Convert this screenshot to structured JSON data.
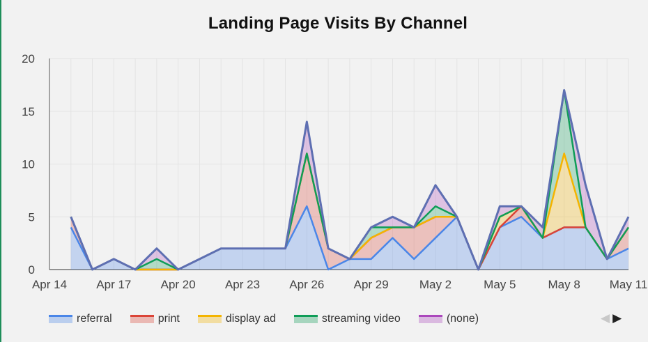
{
  "colors": {
    "referral": "#4a86e8",
    "print": "#db4437",
    "display ad": "#f4b400",
    "streaming video": "#0f9d58",
    "(none)": "#ab47bc",
    "outline": "#5e6fb2"
  },
  "chart_data": {
    "type": "area",
    "stacked": true,
    "title": "Landing Page Visits By Channel",
    "xlabel": "",
    "ylabel": "",
    "ylim": [
      0,
      20
    ],
    "yticks": [
      "0",
      "5",
      "10",
      "15",
      "20"
    ],
    "xtick_labels": [
      "Apr 14",
      "Apr 17",
      "Apr 20",
      "Apr 23",
      "Apr 26",
      "Apr 29",
      "May 2",
      "May 5",
      "May 8",
      "May 11"
    ],
    "grid": true,
    "legend_position": "bottom",
    "x": [
      "Apr 15",
      "Apr 16",
      "Apr 17",
      "Apr 18",
      "Apr 19",
      "Apr 20",
      "Apr 21",
      "Apr 22",
      "Apr 23",
      "Apr 24",
      "Apr 25",
      "Apr 26",
      "Apr 27",
      "Apr 28",
      "Apr 29",
      "Apr 30",
      "May 1",
      "May 2",
      "May 3",
      "May 4",
      "May 5",
      "May 6",
      "May 7",
      "May 8",
      "May 9",
      "May 10",
      "May 11"
    ],
    "series": [
      {
        "name": "referral",
        "values": [
          4,
          0,
          1,
          0,
          0,
          0,
          1,
          2,
          2,
          2,
          2,
          6,
          0,
          1,
          1,
          3,
          1,
          3,
          5,
          0,
          4,
          5,
          3,
          4,
          4,
          1,
          2
        ]
      },
      {
        "name": "print",
        "values": [
          1,
          0,
          0,
          0,
          0,
          0,
          0,
          0,
          0,
          0,
          0,
          5,
          2,
          0,
          2,
          1,
          3,
          2,
          0,
          0,
          0,
          1,
          0,
          0,
          0,
          0,
          2
        ]
      },
      {
        "name": "display ad",
        "values": [
          0,
          0,
          0,
          0,
          0,
          0,
          0,
          0,
          0,
          0,
          0,
          0,
          0,
          0,
          0,
          0,
          0,
          0,
          0,
          0,
          1,
          0,
          0,
          7,
          0,
          0,
          0
        ]
      },
      {
        "name": "streaming video",
        "values": [
          0,
          0,
          0,
          0,
          1,
          0,
          0,
          0,
          0,
          0,
          0,
          0,
          0,
          0,
          1,
          0,
          0,
          1,
          0,
          0,
          0,
          0,
          0,
          6,
          0,
          0,
          0
        ]
      },
      {
        "name": "(none)",
        "values": [
          0,
          0,
          0,
          0,
          1,
          0,
          0,
          0,
          0,
          0,
          0,
          3,
          0,
          0,
          0,
          1,
          0,
          2,
          0,
          0,
          1,
          0,
          1,
          0,
          4,
          0,
          1
        ]
      }
    ]
  },
  "legend": {
    "items": [
      {
        "label": "referral",
        "color": "#4a86e8"
      },
      {
        "label": "print",
        "color": "#db4437"
      },
      {
        "label": "display ad",
        "color": "#f4b400"
      },
      {
        "label": "streaming video",
        "color": "#0f9d58"
      },
      {
        "label": "(none)",
        "color": "#ab47bc"
      }
    ]
  },
  "pager": {
    "prev": "◀",
    "next": "▶"
  }
}
